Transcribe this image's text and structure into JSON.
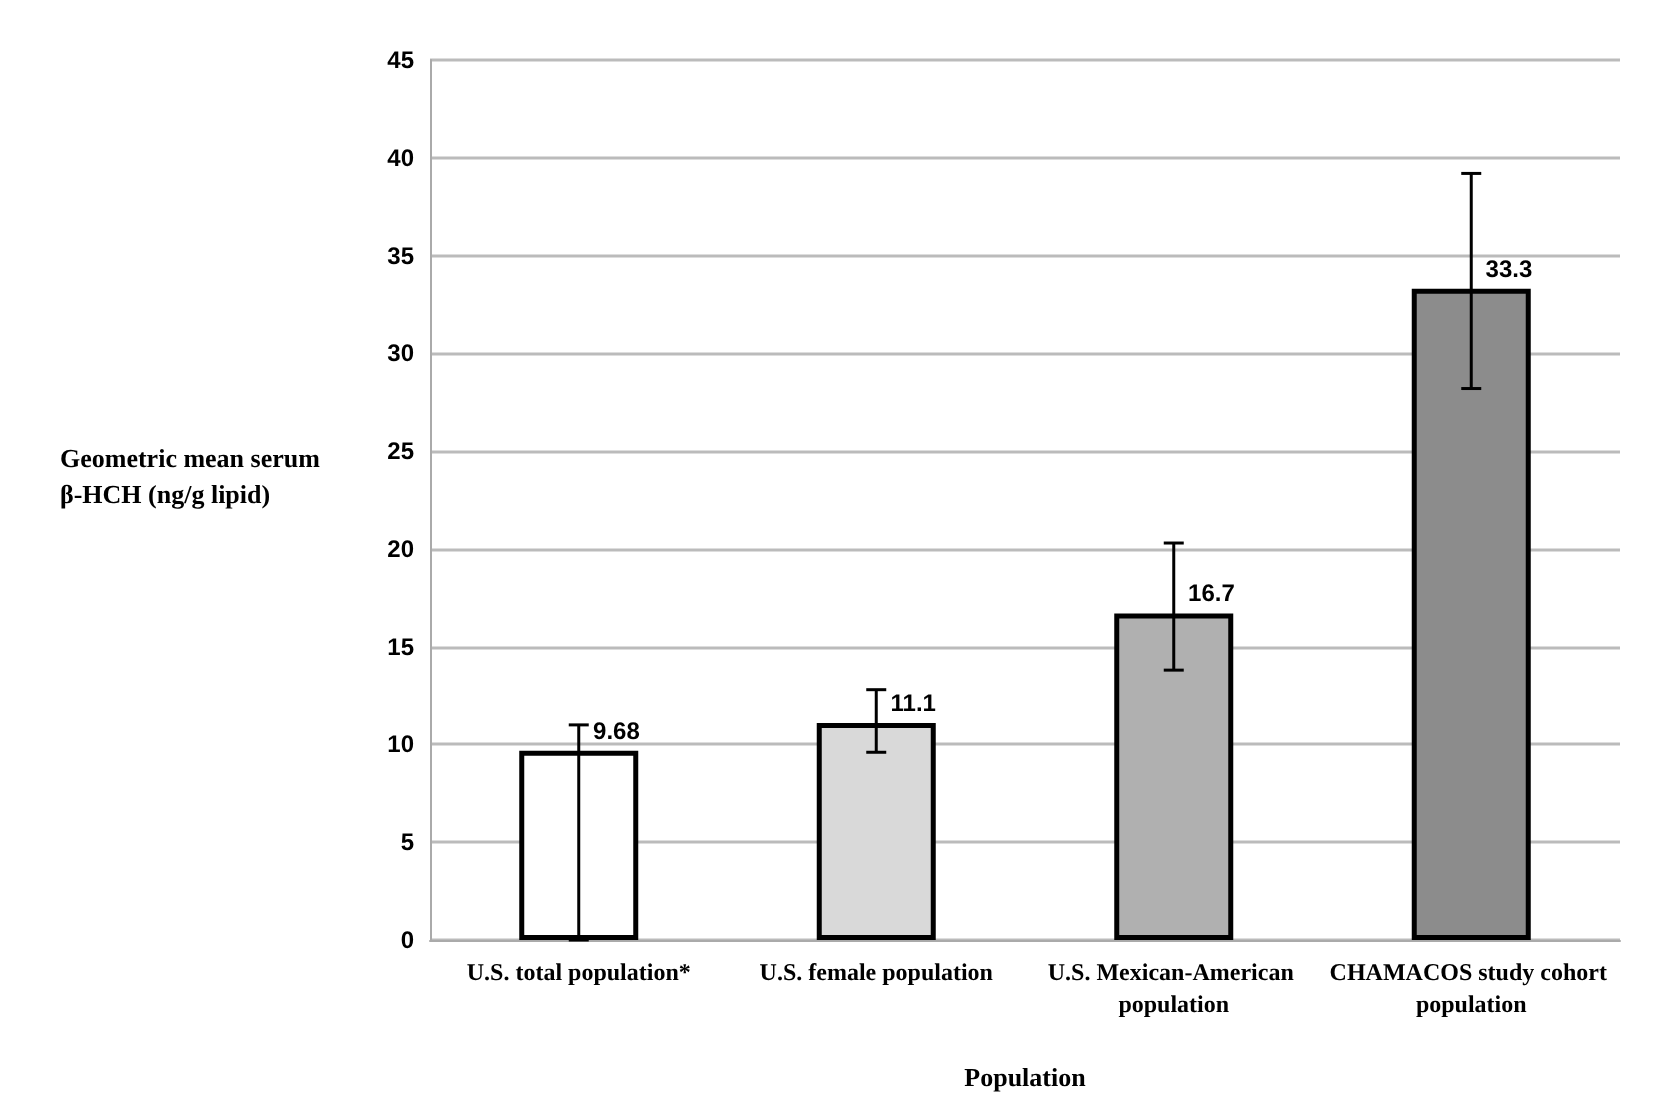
{
  "chart_data": {
    "type": "bar",
    "xlabel": "Population",
    "ylabel": "Geometric mean serum β-HCH (ng/g lipid)",
    "categories": [
      "U.S. total population*",
      "U.S. female population",
      "U.S. Mexican-American population",
      "CHAMACOS study cohort population"
    ],
    "values": [
      9.68,
      11.1,
      16.7,
      33.3
    ],
    "colors": [
      "#ffffff",
      "#d9d9d9",
      "#b0b0b0",
      "#8c8c8c"
    ],
    "errors": [
      [
        0,
        11
      ],
      [
        9.6,
        12.8
      ],
      [
        13.8,
        20.3
      ],
      [
        28.2,
        39.2
      ]
    ],
    "data_labels": true,
    "ylim": [
      0,
      45
    ],
    "yticks": [
      0,
      5,
      10,
      15,
      20,
      25,
      30,
      35,
      40,
      45
    ],
    "grid": "y"
  }
}
